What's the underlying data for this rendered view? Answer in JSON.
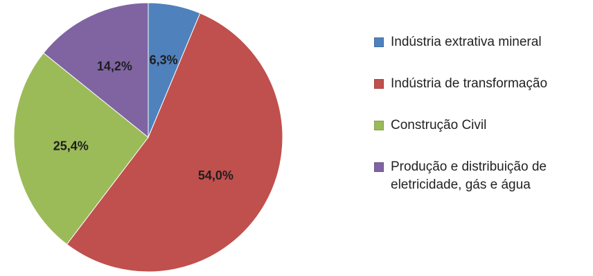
{
  "chart_data": {
    "type": "pie",
    "categories": [
      "Indústria extrativa mineral",
      "Indústria de transformação",
      "Construção Civil",
      "Produção e distribuição de eletricidade, gás e água"
    ],
    "values": [
      6.3,
      54.0,
      25.4,
      14.2
    ],
    "labels": [
      "6,3%",
      "54,0%",
      "25,4%",
      "14,2%"
    ],
    "colors": [
      "#4f81bd",
      "#c0504d",
      "#9bbb59",
      "#8064a2"
    ],
    "legend_position": "right",
    "start": "top",
    "direction": "clockwise"
  },
  "legend": {
    "items": [
      {
        "label": "Indústria extrativa mineral",
        "color": "#4f81bd"
      },
      {
        "label": "Indústria de transformação",
        "color": "#c0504d"
      },
      {
        "label": "Construção Civil",
        "color": "#9bbb59"
      },
      {
        "label": "Produção e distribuição de eletricidade, gás e água",
        "color": "#8064a2"
      }
    ]
  }
}
